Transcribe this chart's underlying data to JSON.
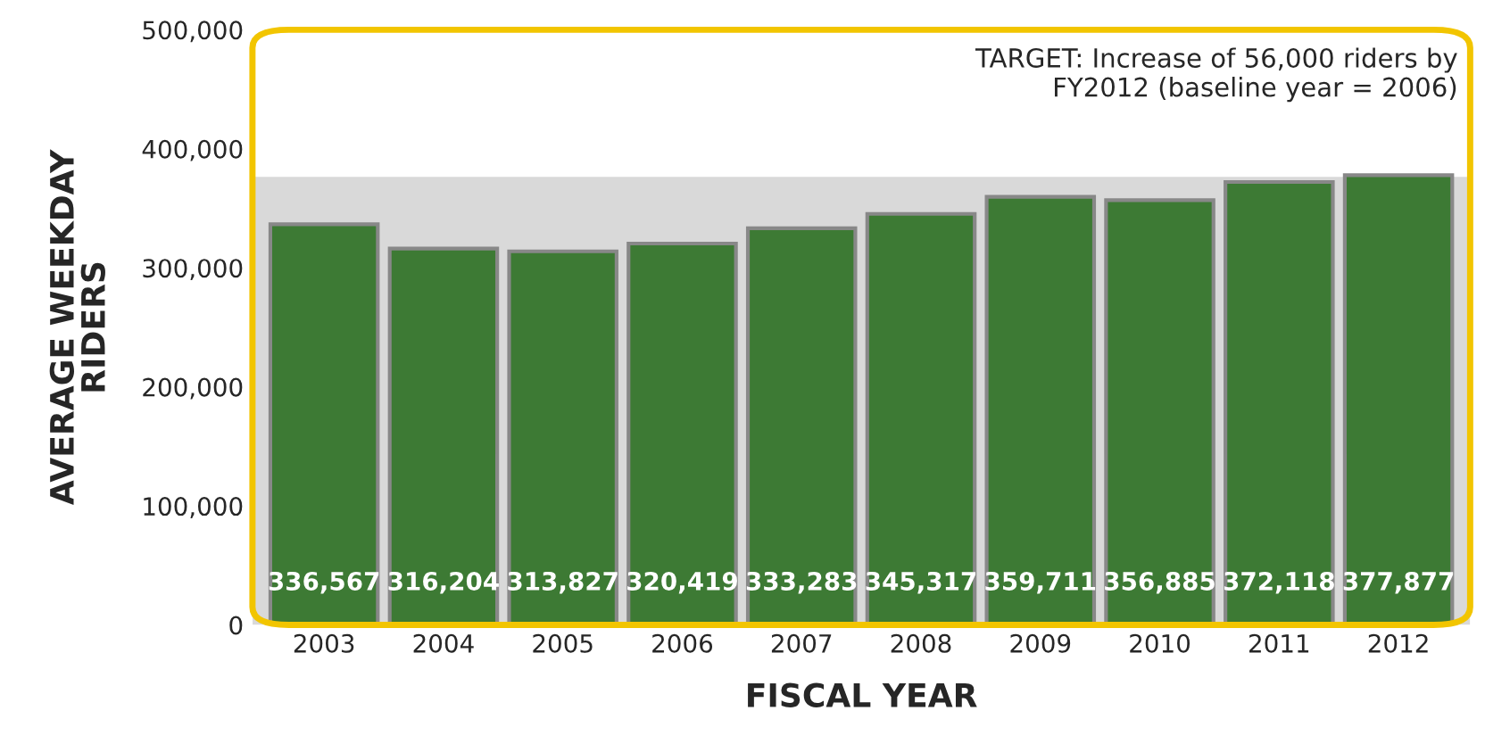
{
  "chart_data": {
    "type": "bar",
    "xlabel": "FISCAL YEAR",
    "ylabel": "AVERAGE WEEKDAY\nRIDERS",
    "categories": [
      "2003",
      "2004",
      "2005",
      "2006",
      "2007",
      "2008",
      "2009",
      "2010",
      "2011",
      "2012"
    ],
    "values": [
      336567,
      316204,
      313827,
      320419,
      333283,
      345317,
      359711,
      356885,
      372118,
      377877
    ],
    "value_labels": [
      "336,567",
      "316,204",
      "313,827",
      "320,419",
      "333,283",
      "345,317",
      "359,711",
      "356,885",
      "372,118",
      "377,877"
    ],
    "color": "#3d7a34",
    "ylim": [
      0,
      500000
    ],
    "yticks": [
      {
        "value": 0,
        "label": "0"
      },
      {
        "value": 100000,
        "label": "100,000"
      },
      {
        "value": 200000,
        "label": "200,000"
      },
      {
        "value": 300000,
        "label": "300,000"
      },
      {
        "value": 400000,
        "label": "400,000"
      },
      {
        "value": 500000,
        "label": "500,000"
      }
    ],
    "bands": [
      {
        "axis": "y",
        "from": 0,
        "to": 376419,
        "color": "#d9d9d9"
      }
    ],
    "annotations": [
      "TARGET: Increase of 56,000 riders by\nFY2012 (baseline year = 2006)"
    ],
    "grid": false,
    "legend": false
  }
}
